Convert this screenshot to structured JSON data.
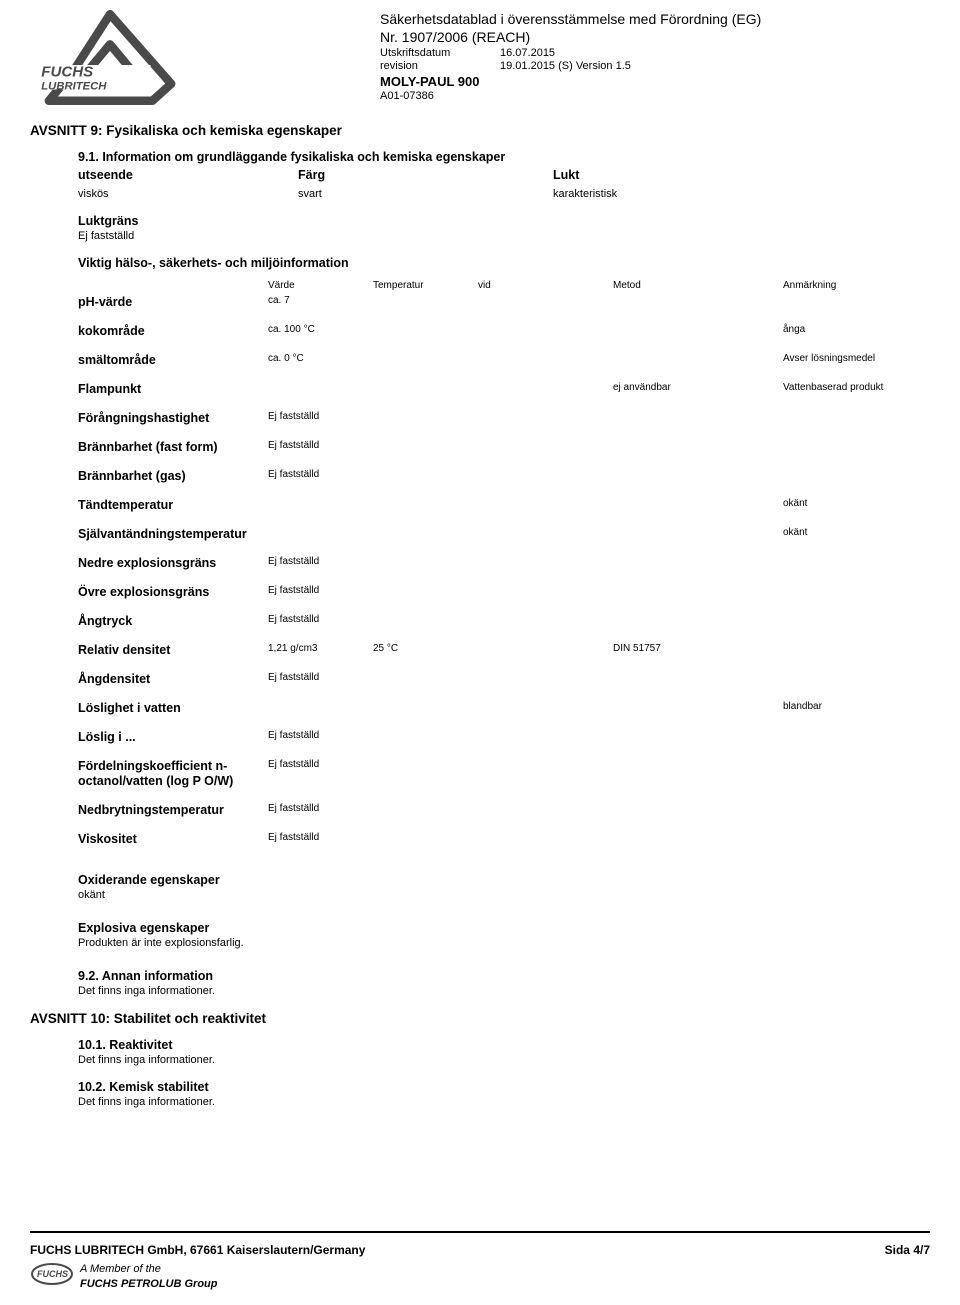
{
  "header": {
    "doc_title_1": "Säkerhetsdatablad i överensstämmelse med Förordning (EG)",
    "doc_title_2": "Nr. 1907/2006 (REACH)",
    "print_label": "Utskriftsdatum",
    "print_value": "16.07.2015",
    "rev_label": "revision",
    "rev_value": "19.01.2015   (S) Version 1.5",
    "product_name": "MOLY-PAUL 900",
    "product_code": "A01-07386"
  },
  "section9": {
    "title": "AVSNITT 9: Fysikaliska och kemiska egenskaper",
    "s91_title": "9.1. Information om grundläggande fysikaliska och kemiska egenskaper",
    "appearance_label": "utseende",
    "colour_label": "Färg",
    "odour_label": "Lukt",
    "appearance_value": "viskös",
    "colour_value": "svart",
    "odour_value": "karakteristisk",
    "threshold_label": "Luktgräns",
    "threshold_value": "Ej fastställd",
    "important_label": "Viktig hälso-, säkerhets- och miljöinformation",
    "table_header": {
      "value": "Värde",
      "temp": "Temperatur",
      "vid": "vid",
      "method": "Metod",
      "note": "Anmärkning"
    },
    "rows": [
      {
        "label": "pH-värde",
        "value": "ca. 7",
        "temp": "",
        "vid": "",
        "method": "",
        "note": ""
      },
      {
        "label": "kokområde",
        "value": "ca. 100 °C",
        "temp": "",
        "vid": "",
        "method": "",
        "note": "ånga"
      },
      {
        "label": "smältområde",
        "value": "ca. 0 °C",
        "temp": "",
        "vid": "",
        "method": "",
        "note": "Avser lösningsmedel"
      },
      {
        "label": "Flampunkt",
        "value": "",
        "temp": "",
        "vid": "",
        "method": "ej användbar",
        "note": "Vattenbaserad produkt"
      },
      {
        "label": "Förångningshastighet",
        "value": "Ej fastställd",
        "temp": "",
        "vid": "",
        "method": "",
        "note": ""
      },
      {
        "label": "Brännbarhet (fast form)",
        "value": "Ej fastställd",
        "temp": "",
        "vid": "",
        "method": "",
        "note": ""
      },
      {
        "label": "Brännbarhet (gas)",
        "value": "Ej fastställd",
        "temp": "",
        "vid": "",
        "method": "",
        "note": ""
      },
      {
        "label": "Tändtemperatur",
        "value": "",
        "temp": "",
        "vid": "",
        "method": "",
        "note": "okänt"
      },
      {
        "label": "Självantändningstemperatur",
        "value": "",
        "temp": "",
        "vid": "",
        "method": "",
        "note": "okänt"
      },
      {
        "label": "Nedre explosionsgräns",
        "value": "Ej fastställd",
        "temp": "",
        "vid": "",
        "method": "",
        "note": ""
      },
      {
        "label": "Övre explosionsgräns",
        "value": "Ej fastställd",
        "temp": "",
        "vid": "",
        "method": "",
        "note": ""
      },
      {
        "label": "Ångtryck",
        "value": "Ej fastställd",
        "temp": "",
        "vid": "",
        "method": "",
        "note": ""
      },
      {
        "label": "Relativ densitet",
        "value": "1,21 g/cm3",
        "temp": "25 °C",
        "vid": "",
        "method": "DIN 51757",
        "note": ""
      },
      {
        "label": "Ångdensitet",
        "value": "Ej fastställd",
        "temp": "",
        "vid": "",
        "method": "",
        "note": ""
      },
      {
        "label": "Löslighet i vatten",
        "value": "",
        "temp": "",
        "vid": "",
        "method": "",
        "note": "blandbar"
      },
      {
        "label": "Löslig i ...",
        "value": "Ej fastställd",
        "temp": "",
        "vid": "",
        "method": "",
        "note": ""
      },
      {
        "label": "Fördelningskoefficient n-octanol/vatten (log P O/W)",
        "value": "Ej fastställd",
        "temp": "",
        "vid": "",
        "method": "",
        "note": ""
      },
      {
        "label": "Nedbrytningstemperatur",
        "value": "Ej fastställd",
        "temp": "",
        "vid": "",
        "method": "",
        "note": ""
      },
      {
        "label": "Viskositet",
        "value": "Ej fastställd",
        "temp": "",
        "vid": "",
        "method": "",
        "note": ""
      }
    ],
    "oxidizing_label": "Oxiderande egenskaper",
    "oxidizing_value": "okänt",
    "explosive_label": "Explosiva egenskaper",
    "explosive_value": "Produkten är inte explosionsfarlig.",
    "s92_label": "9.2. Annan information",
    "s92_value": "Det finns inga informationer."
  },
  "section10": {
    "title": "AVSNITT 10: Stabilitet och reaktivitet",
    "s101_label": "10.1. Reaktivitet",
    "s101_value": "Det finns inga informationer.",
    "s102_label": "10.2. Kemisk stabilitet",
    "s102_value": "Det finns inga informationer."
  },
  "footer": {
    "company": "FUCHS LUBRITECH GmbH, 67661 Kaiserslautern/Germany",
    "member": "A Member of the",
    "group": "FUCHS PETROLUB Group",
    "page": "Sida  4/7"
  }
}
